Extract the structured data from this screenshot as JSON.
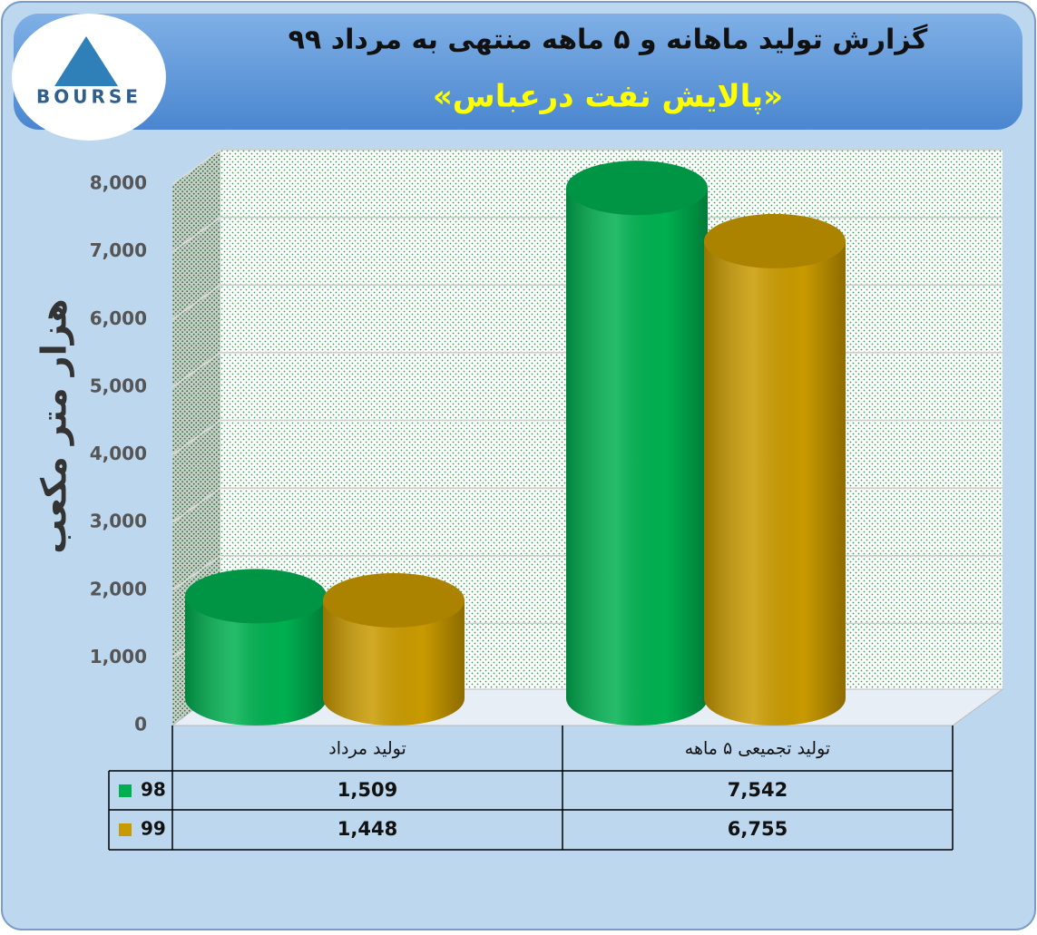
{
  "logo": "BOURSE",
  "chart_data": {
    "type": "bar3d",
    "title": "گزارش تولید ماهانه و ۵ ماهه منتهی به مرداد ۹۹",
    "subtitle": "«پالایش نفت درعباس»",
    "y_label": "هزار متر مکعب",
    "categories": [
      "تولید مرداد",
      "تولید تجمیعی ۵ ماهه"
    ],
    "series": [
      {
        "name": "98",
        "color": "#00b050",
        "values": [
          1509,
          7542
        ],
        "value_labels": [
          "1,509",
          "7,542"
        ]
      },
      {
        "name": "99",
        "color": "#c99a00",
        "values": [
          1448,
          6755
        ],
        "value_labels": [
          "1,448",
          "6,755"
        ]
      }
    ],
    "ylim": [
      0,
      8000
    ],
    "yticks": [
      0,
      {
        "value": 1000,
        "label": "1,000"
      },
      {
        "value": 2000,
        "label": "2,000"
      },
      {
        "value": 3000,
        "label": "3,000"
      },
      {
        "value": 4000,
        "label": "4,000"
      },
      {
        "value": 5000,
        "label": "5,000"
      },
      {
        "value": 6000,
        "label": "6,000"
      },
      {
        "value": 7000,
        "label": "7,000"
      },
      {
        "value": 8000,
        "label": "8,000"
      }
    ],
    "grid": true
  }
}
